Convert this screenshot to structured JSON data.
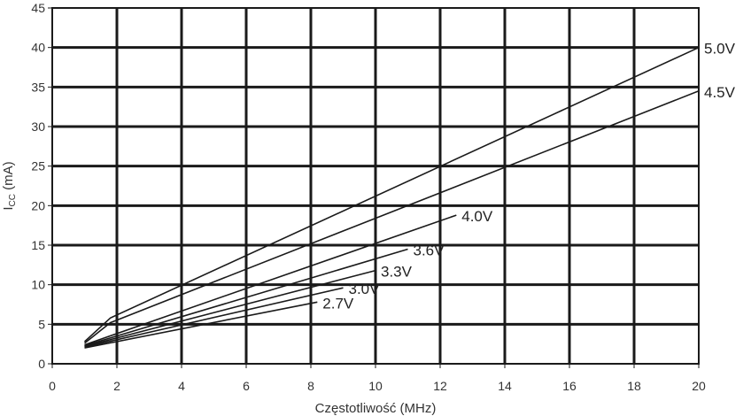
{
  "chart_data": {
    "type": "line",
    "xlabel": "Częstotliwość (MHz)",
    "ylabel_main": "I",
    "ylabel_sub": "CC",
    "ylabel_unit": " (mA)",
    "xlim": [
      0,
      20
    ],
    "ylim": [
      0,
      45
    ],
    "x_ticks": [
      "0",
      "2",
      "4",
      "6",
      "8",
      "10",
      "12",
      "14",
      "16",
      "18",
      "20"
    ],
    "y_ticks": [
      "0",
      "5",
      "10",
      "15",
      "20",
      "25",
      "30",
      "35",
      "40",
      "45"
    ],
    "grid": true,
    "series": [
      {
        "name": "5.0V",
        "x": [
          1,
          1.8,
          20
        ],
        "y": [
          2.8,
          5.8,
          40
        ]
      },
      {
        "name": "4.5V",
        "x": [
          1,
          1.8,
          20
        ],
        "y": [
          2.6,
          5.2,
          34.5
        ]
      },
      {
        "name": "4.0V",
        "x": [
          1,
          12.5
        ],
        "y": [
          2.4,
          18.8
        ]
      },
      {
        "name": "3.6V",
        "x": [
          1,
          11
        ],
        "y": [
          2.3,
          14.5
        ]
      },
      {
        "name": "3.3V",
        "x": [
          1,
          10
        ],
        "y": [
          2.2,
          11.8
        ]
      },
      {
        "name": "3.0V",
        "x": [
          1,
          9
        ],
        "y": [
          2.1,
          9.6
        ]
      },
      {
        "name": "2.7V",
        "x": [
          1,
          8.2
        ],
        "y": [
          2.0,
          7.8
        ]
      }
    ]
  },
  "colors": {
    "grid": "#1a1a1a",
    "line": "#1a1a1a",
    "text": "#333333"
  }
}
